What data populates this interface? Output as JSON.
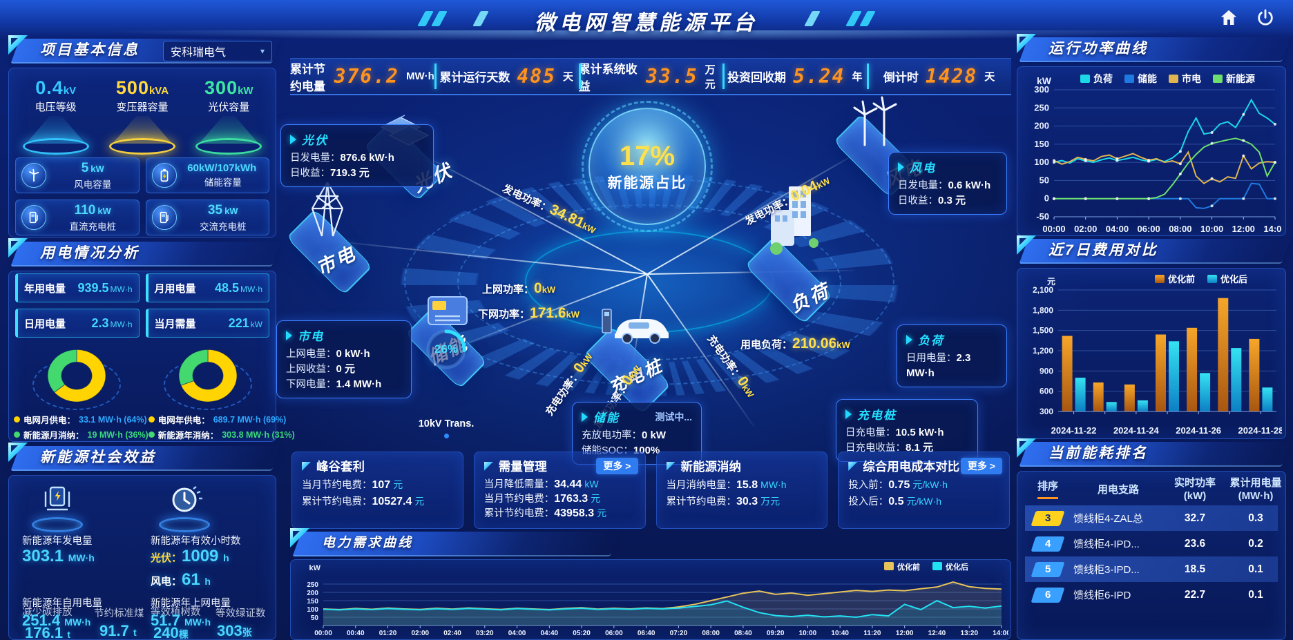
{
  "header": {
    "title": "微电网智慧能源平台"
  },
  "kpi_bar": [
    {
      "label": "累计节约电量",
      "value": "376.2",
      "unit": "MW·h"
    },
    {
      "label": "累计运行天数",
      "value": "485",
      "unit": "天"
    },
    {
      "label": "累计系统收益",
      "value": "33.5",
      "unit": "万元"
    },
    {
      "label": "投资回收期",
      "value": "5.24",
      "unit": "年"
    },
    {
      "label": "倒计时",
      "value": "1428",
      "unit": "天"
    }
  ],
  "project_info": {
    "title": "项目基本信息",
    "company": "安科瑞电气",
    "spotlights": [
      {
        "value": "0.4",
        "unit": "kV",
        "label": "电压等级",
        "color": "#35c8ff"
      },
      {
        "value": "500",
        "unit": "kVA",
        "label": "变压器容量",
        "color": "#ffd83d"
      },
      {
        "value": "300",
        "unit": "kW",
        "label": "光伏容量",
        "color": "#3ee6a3"
      }
    ],
    "capacities": [
      {
        "value": "5",
        "unit": "kW",
        "label": "风电容量"
      },
      {
        "value": "60kW/107kWh",
        "unit": "",
        "label": "储能容量"
      },
      {
        "value": "110",
        "unit": "kW",
        "label": "直流充电桩"
      },
      {
        "value": "35",
        "unit": "kW",
        "label": "交流充电桩"
      }
    ]
  },
  "usage_analysis": {
    "title": "用电情况分析",
    "stats": [
      {
        "label": "年用电量",
        "value": "939.5",
        "unit": "MW·h"
      },
      {
        "label": "月用电量",
        "value": "48.5",
        "unit": "MW·h"
      },
      {
        "label": "日用电量",
        "value": "2.3",
        "unit": "MW·h"
      },
      {
        "label": "当月需量",
        "value": "221",
        "unit": "kW"
      }
    ],
    "month_legend": [
      {
        "label": "电网月供电：",
        "value": "33.1 MW·h (64%)"
      },
      {
        "label": "新能源月消纳：",
        "value": "19 MW·h (36%)"
      }
    ],
    "year_legend": [
      {
        "label": "电网年供电：",
        "value": "689.7 MW·h (69%)"
      },
      {
        "label": "新能源年消纳：",
        "value": "303.8 MW·h (31%)"
      }
    ]
  },
  "social_benefit": {
    "title": "新能源社会效益",
    "gen_label": "新能源年发电量",
    "gen_value": "303.1",
    "gen_unit": "MW·h",
    "hours_label": "新能源年有效小时数",
    "pv_k": "光伏：",
    "pv_v": "1009",
    "pv_u": "h",
    "wind_k": "风电：",
    "wind_v": "61",
    "wind_u": "h",
    "self_label": "新能源年自用电量",
    "self_value": "251.4",
    "self_unit": "MW·h",
    "grid_label": "新能源年上网电量",
    "grid_value": "51.7",
    "grid_unit": "MW·h",
    "co2_label": "减少碳排放",
    "co2_value": "176.1",
    "co2_unit": "t",
    "coal_label": "节约标准煤",
    "coal_value": "91.7",
    "coal_unit": "t",
    "tree_label": "等效植树数",
    "tree_value": "240",
    "tree_unit": "棵",
    "cert_label": "等效绿证数",
    "cert_value": "303",
    "cert_unit": "张"
  },
  "stage": {
    "core_percent": "17%",
    "core_label": "新能源占比",
    "nodes": {
      "pv": "光伏",
      "wind": "风电",
      "grid": "市电",
      "storage": "储能",
      "pile": "充电桩",
      "load": "负荷"
    },
    "flows": {
      "pv_gen": {
        "label": "发电功率：",
        "value": "34.81",
        "unit": "kW"
      },
      "up": {
        "label": "上网功率：",
        "value": "0",
        "unit": "kW"
      },
      "down": {
        "label": "下网功率：",
        "value": "171.6",
        "unit": "kW"
      },
      "wind_gen": {
        "label": "发电功率：",
        "value": "0.04",
        "unit": "kW"
      },
      "load": {
        "label": "用电负荷：",
        "value": "210.06",
        "unit": "kW"
      },
      "chg_l": {
        "label": "充电功率：",
        "value": "0",
        "unit": "kW"
      },
      "dis_l": {
        "label": "放电功率：",
        "value": "0",
        "unit": "kW"
      },
      "chg_r": {
        "label": "充电功率：",
        "value": "0",
        "unit": "kW"
      }
    },
    "cards": {
      "pv": {
        "title": "光伏",
        "k1": "日发电量：",
        "v1": "876.6 kW·h",
        "k2": "日收益：",
        "v2": "719.3 元"
      },
      "wind": {
        "title": "风电",
        "k1": "日发电量：",
        "v1": "0.6 kW·h",
        "k2": "日收益：",
        "v2": "0.3 元"
      },
      "grid": {
        "title": "市电",
        "k1": "上网电量：",
        "v1": "0 kW·h",
        "k2": "上网收益：",
        "v2": "0 元",
        "k3": "下网电量：",
        "v3": "1.4 MW·h"
      },
      "storage": {
        "title": "储能",
        "badge": "测试中...",
        "k1": "充放电功率：",
        "v1": "0 kW",
        "k2": "储能SOC：",
        "v2": "100%"
      },
      "load": {
        "title": "负荷",
        "k1": "日用电量：",
        "v1": "2.3 MW·h"
      },
      "pile": {
        "title": "充电桩",
        "k1": "日充电量：",
        "v1": "10.5 kW·h",
        "k2": "日充电收益：",
        "v2": "8.1 元"
      }
    },
    "transformer": {
      "percent": "26%",
      "label": "10kV Trans.",
      "value": 26
    }
  },
  "feature_cards": {
    "peak_valley": {
      "title": "峰谷套利",
      "k1": "当月节约电费：",
      "v1": "107",
      "u1": "元",
      "k2": "累计节约电费：",
      "v2": "10527.4",
      "u2": "元"
    },
    "demand_mgmt": {
      "title": "需量管理",
      "more": "更多 >",
      "k1": "当月降低需量：",
      "v1": "34.44",
      "u1": "kW",
      "k2": "当月节约电费：",
      "v2": "1763.3",
      "u2": "元",
      "k3": "累计节约电费：",
      "v3": "43958.3",
      "u3": "元"
    },
    "consumption": {
      "title": "新能源消纳",
      "k1": "当月消纳电量：",
      "v1": "15.8",
      "u1": "MW·h",
      "k2": "累计节约电费：",
      "v2": "30.3",
      "u2": "万元"
    },
    "cost_compare": {
      "title": "综合用电成本对比",
      "more": "更多 >",
      "k1": "投入前：",
      "v1": "0.75",
      "u1": "元/kW·h",
      "k2": "投入后：",
      "v2": "0.5",
      "u2": "元/kW·h"
    }
  },
  "panels": {
    "power_curve_title": "运行功率曲线",
    "cost7_title": "近7日费用对比",
    "rank_title": "当前能耗排名",
    "demand_title": "电力需求曲线"
  },
  "rank_table": {
    "headers": [
      {
        "l1": "排序",
        "l2": ""
      },
      {
        "l1": "用电支路",
        "l2": ""
      },
      {
        "l1": "实时功率",
        "l2": "(kW)"
      },
      {
        "l1": "累计用电量",
        "l2": "(MW·h)"
      }
    ],
    "rows": [
      {
        "rank": "3",
        "branch": "馈线柜4-ZAL总",
        "power": "32.7",
        "energy": "0.3"
      },
      {
        "rank": "4",
        "branch": "馈线柜4-IPD...",
        "power": "23.6",
        "energy": "0.2"
      },
      {
        "rank": "5",
        "branch": "馈线柜3-IPD...",
        "power": "18.5",
        "energy": "0.1"
      },
      {
        "rank": "6",
        "branch": "馈线柜6-IPD",
        "power": "22.7",
        "energy": "0.1"
      }
    ]
  },
  "chart_data": [
    {
      "name": "运行功率曲线",
      "type": "line",
      "ylabel": "kW",
      "ylim": [
        -50,
        300
      ],
      "yticks": [
        -50,
        0,
        50,
        100,
        150,
        200,
        250,
        300
      ],
      "x_labels": [
        "00:00",
        "02:00",
        "04:00",
        "06:00",
        "08:00",
        "10:00",
        "12:00",
        "14:00"
      ],
      "legend_position": "top",
      "grid": true,
      "series": [
        {
          "name": "负荷",
          "color": "#1bd7e8",
          "values": [
            100,
            105,
            98,
            110,
            104,
            100,
            107,
            112,
            105,
            109,
            114,
            107,
            103,
            108,
            102,
            112,
            130,
            185,
            222,
            178,
            182,
            205,
            212,
            196,
            232,
            272,
            235,
            222,
            205
          ]
        },
        {
          "name": "储能",
          "color": "#1e7ae0",
          "values": [
            0,
            0,
            0,
            0,
            0,
            0,
            0,
            0,
            0,
            0,
            0,
            0,
            0,
            0,
            0,
            0,
            0,
            0,
            -25,
            -27,
            -20,
            0,
            0,
            0,
            0,
            42,
            40,
            0,
            0
          ]
        },
        {
          "name": "市电",
          "color": "#e0b450",
          "values": [
            105,
            95,
            102,
            114,
            108,
            104,
            116,
            120,
            110,
            117,
            124,
            114,
            106,
            110,
            100,
            104,
            96,
            128,
            62,
            42,
            55,
            46,
            60,
            56,
            118,
            82,
            98,
            102,
            100
          ]
        },
        {
          "name": "新能源",
          "color": "#6ede6e",
          "values": [
            0,
            0,
            0,
            0,
            0,
            0,
            0,
            0,
            0,
            0,
            0,
            0,
            0,
            3,
            12,
            38,
            68,
            98,
            122,
            142,
            152,
            157,
            162,
            166,
            160,
            150,
            128,
            62,
            100
          ]
        }
      ]
    },
    {
      "name": "近7日费用对比",
      "type": "bar",
      "ylabel": "元",
      "ylim": [
        300,
        2100
      ],
      "yticks": [
        300,
        600,
        900,
        1200,
        1500,
        1800,
        2100
      ],
      "ytick_labels": [
        "300",
        "600",
        "900",
        "1,200",
        "1,500",
        "1,800",
        "2,100"
      ],
      "categories": [
        "2024-11-22",
        "2024-11-23",
        "2024-11-24",
        "2024-11-25",
        "2024-11-26",
        "2024-11-27",
        "2024-11-28"
      ],
      "label_every": 2,
      "legend_position": "top-right",
      "grid": true,
      "series": [
        {
          "name": "优化前",
          "color": "#e08a1e",
          "values": [
            1420,
            730,
            700,
            1440,
            1540,
            1980,
            1375
          ]
        },
        {
          "name": "优化后",
          "color": "#17c8e8",
          "values": [
            800,
            440,
            465,
            1340,
            870,
            1240,
            655
          ]
        }
      ]
    },
    {
      "name": "电力需求曲线",
      "type": "line",
      "ylabel": "kW",
      "ylim": [
        0,
        300
      ],
      "yticks": [
        50,
        100,
        150,
        200,
        250
      ],
      "x_labels": [
        "00:00",
        "00:40",
        "01:20",
        "02:00",
        "02:40",
        "03:20",
        "04:00",
        "04:40",
        "05:20",
        "06:00",
        "06:40",
        "07:20",
        "08:00",
        "08:40",
        "09:20",
        "10:00",
        "10:40",
        "11:20",
        "12:00",
        "12:40",
        "13:20",
        "14:00"
      ],
      "legend_position": "top-right",
      "grid": true,
      "series": [
        {
          "name": "优化前",
          "color": "#e8c35a",
          "fill": true,
          "values": [
            100,
            96,
            103,
            98,
            105,
            100,
            97,
            104,
            99,
            106,
            101,
            97,
            104,
            100,
            96,
            103,
            107,
            99,
            104,
            100,
            106,
            102,
            112,
            128,
            150,
            172,
            195,
            208,
            188,
            196,
            182,
            192,
            202,
            212,
            206,
            214,
            210,
            222,
            232,
            262,
            234,
            224,
            220
          ]
        },
        {
          "name": "优化后",
          "color": "#22e2f2",
          "fill": true,
          "values": [
            98,
            94,
            100,
            96,
            102,
            98,
            95,
            101,
            97,
            103,
            99,
            95,
            102,
            98,
            94,
            100,
            104,
            97,
            101,
            98,
            103,
            100,
            105,
            115,
            125,
            148,
            110,
            78,
            60,
            54,
            62,
            52,
            58,
            50,
            66,
            58,
            128,
            96,
            150,
            108,
            116,
            106,
            118
          ]
        }
      ]
    },
    {
      "name": "月供电结构",
      "type": "pie",
      "labels": [
        "电网月供电",
        "新能源月消纳"
      ],
      "values": [
        64,
        36
      ],
      "colors": [
        "#ffd400",
        "#43d96f"
      ]
    },
    {
      "name": "年供电结构",
      "type": "pie",
      "labels": [
        "电网年供电",
        "新能源年消纳"
      ],
      "values": [
        69,
        31
      ],
      "colors": [
        "#ffd400",
        "#43d96f"
      ]
    }
  ]
}
